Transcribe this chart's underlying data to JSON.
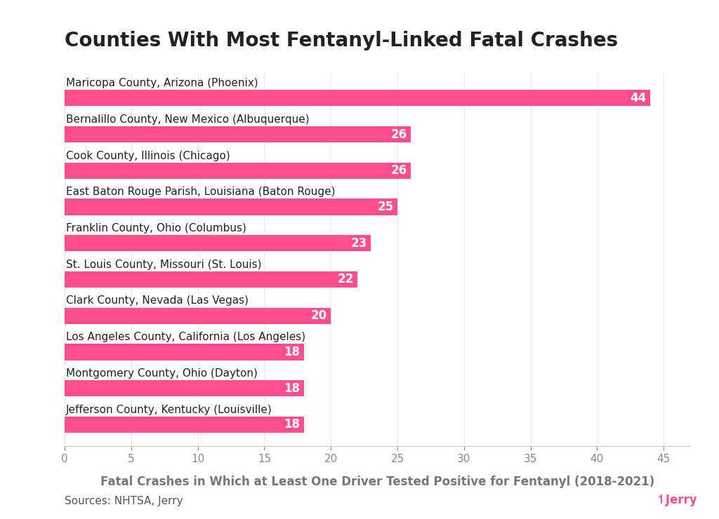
{
  "title": "Counties With Most Fentanyl-Linked Fatal Crashes",
  "xlabel": "Fatal Crashes in Which at Least One Driver Tested Positive for Fentanyl (2018-2021)",
  "source_text": "Sources: NHTSA, Jerry",
  "jerry_text": "↿Jerry",
  "categories": [
    "Maricopa County, Arizona (Phoenix)",
    "Bernalillo County, New Mexico (Albuquerque)",
    "Cook County, Illinois (Chicago)",
    "East Baton Rouge Parish, Louisiana (Baton Rouge)",
    "Franklin County, Ohio (Columbus)",
    "St. Louis County, Missouri (St. Louis)",
    "Clark County, Nevada (Las Vegas)",
    "Los Angeles County, California (Los Angeles)",
    "Montgomery County, Ohio (Dayton)",
    "Jefferson County, Kentucky (Louisville)"
  ],
  "values": [
    44,
    26,
    26,
    25,
    23,
    22,
    20,
    18,
    18,
    18
  ],
  "bar_color": "#FF4D8D",
  "label_color": "#FFFFFF",
  "title_color": "#222222",
  "axis_label_color": "#777777",
  "source_color": "#555555",
  "jerry_color": "#FF4D8D",
  "background_color": "#FFFFFF",
  "xlim": [
    0,
    47
  ],
  "xticks": [
    0,
    5,
    10,
    15,
    20,
    25,
    30,
    35,
    40,
    45
  ],
  "title_fontsize": 20,
  "bar_label_fontsize": 12,
  "category_fontsize": 11,
  "xlabel_fontsize": 12,
  "source_fontsize": 11,
  "tick_label_fontsize": 11
}
